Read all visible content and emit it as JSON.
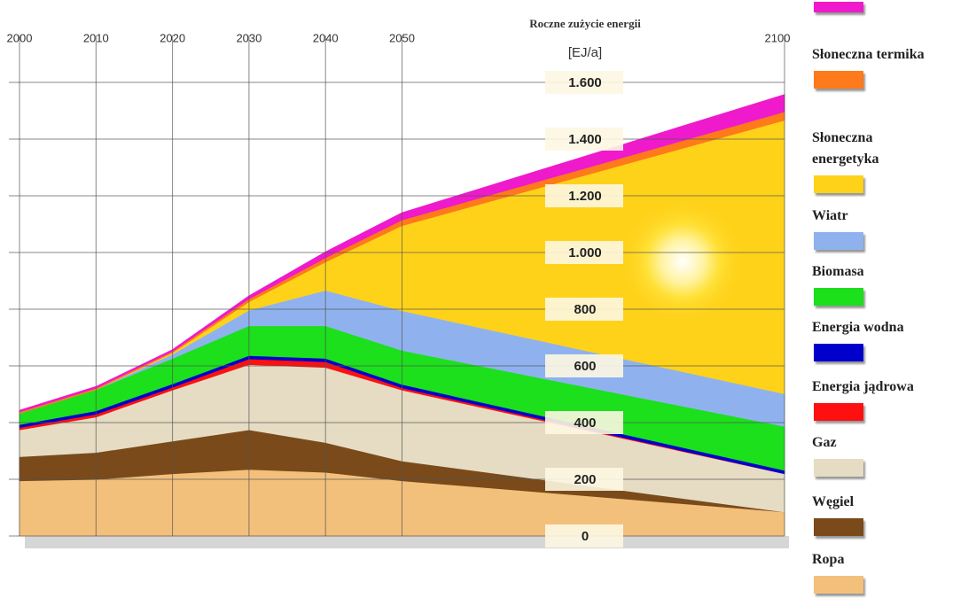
{
  "chart_data": {
    "type": "stacked-area",
    "y_label": "Roczne zużycie energii",
    "y_unit": "[EJ/a]",
    "x": [
      2000,
      2010,
      2020,
      2030,
      2040,
      2050,
      2100
    ],
    "xlim": [
      2000,
      2100
    ],
    "xticks": [
      2000,
      2010,
      2020,
      2030,
      2040,
      2050,
      2100
    ],
    "ylim": [
      0,
      1700
    ],
    "yticks": [
      0,
      200,
      400,
      600,
      800,
      {
        "value": 1000,
        "label": "1.000"
      },
      {
        "value": 1200,
        "label": "1.200"
      },
      {
        "value": 1400,
        "label": "1.400"
      },
      {
        "value": 1600,
        "label": "1.600"
      }
    ],
    "grid": true,
    "series": [
      {
        "name": "Ropa",
        "color": "#f3c07c",
        "values": [
          195,
          200,
          220,
          235,
          225,
          195,
          85
        ]
      },
      {
        "name": "Węgiel",
        "color": "#7a4a1a",
        "values": [
          85,
          95,
          115,
          140,
          105,
          70,
          0
        ]
      },
      {
        "name": "Gaz",
        "color": "#e5dcc3",
        "values": [
          95,
          125,
          180,
          230,
          265,
          250,
          135
        ]
      },
      {
        "name": "Energia jądrowa",
        "color": "#ff1010",
        "values": [
          8,
          10,
          10,
          20,
          20,
          8,
          0
        ]
      },
      {
        "name": "Energia wodna",
        "color": "#0000cc",
        "values": [
          10,
          12,
          12,
          12,
          12,
          12,
          12
        ]
      },
      {
        "name": "Biomasa",
        "color": "#1be01b",
        "values": [
          40,
          75,
          90,
          105,
          115,
          120,
          155
        ]
      },
      {
        "name": "Wiatr",
        "color": "#8fb2ef",
        "values": [
          0,
          0,
          15,
          55,
          125,
          140,
          115
        ]
      },
      {
        "name": "Słoneczna energetyka",
        "color": "#ffd21a",
        "values": [
          0,
          0,
          5,
          30,
          100,
          300,
          965
        ]
      },
      {
        "name": "Słoneczna termika",
        "color": "#ff7a1a",
        "values": [
          5,
          5,
          5,
          10,
          15,
          20,
          30
        ]
      },
      {
        "name": null,
        "color": "#ee1acc",
        "values": [
          5,
          5,
          5,
          10,
          20,
          25,
          60
        ]
      }
    ]
  }
}
